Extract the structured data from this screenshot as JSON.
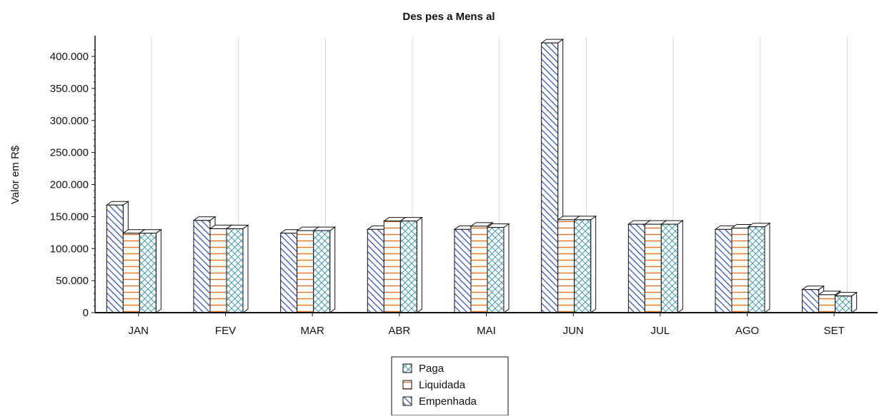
{
  "chart_data": {
    "type": "bar",
    "title": "Des pes a Mens al",
    "xlabel": "",
    "ylabel": "Valor em R$",
    "ylim": [
      0,
      420000
    ],
    "yticks": [
      0,
      50000,
      100000,
      150000,
      200000,
      250000,
      300000,
      350000,
      400000
    ],
    "ytick_labels": [
      "0",
      "50.000",
      "100.000",
      "150.000",
      "200.000",
      "250.000",
      "300.000",
      "350.000",
      "400.000"
    ],
    "categories": [
      "JAN",
      "FEV",
      "MAR",
      "ABR",
      "MAI",
      "JUN",
      "JUL",
      "AGO",
      "SET"
    ],
    "series": [
      {
        "name": "Empenhada",
        "values": [
          168000,
          144000,
          124000,
          130000,
          130000,
          421000,
          138000,
          130000,
          36000
        ]
      },
      {
        "name": "Liquidada",
        "values": [
          124000,
          131000,
          128000,
          143000,
          135000,
          145000,
          138000,
          132000,
          28000
        ]
      },
      {
        "name": "Paga",
        "values": [
          124000,
          131000,
          128000,
          143000,
          133000,
          145000,
          138000,
          134000,
          26000
        ]
      }
    ],
    "legend": {
      "position": "bottom-center",
      "entries": [
        "Paga",
        "Liquidada",
        "Empenhada"
      ]
    },
    "grid": "vertical",
    "colors": {
      "Empenhada": "#2f4fb0",
      "Liquidada": "#e0752a",
      "Paga": "#2f8fa0"
    }
  }
}
